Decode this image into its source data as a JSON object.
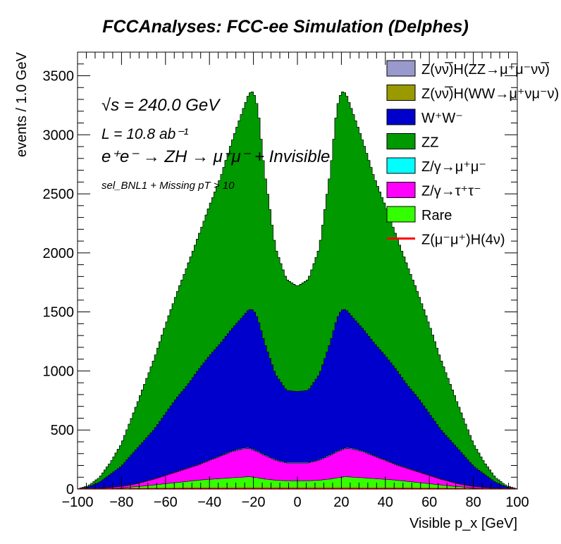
{
  "title": "FCCAnalyses: FCC-ee Simulation (Delphes)",
  "annotations": {
    "sqrt_s": "√s = 240.0 GeV",
    "lumi": "L = 10.8 ab⁻¹",
    "process": "e⁺e⁻ → ZH → μ⁺μ⁻ + Invisible",
    "selection": "sel_BNL1 + Missing pT > 10"
  },
  "chart_data": {
    "type": "area",
    "stacked": true,
    "title": "FCCAnalyses: FCC-ee Simulation (Delphes)",
    "xlabel": "Visible p_x [GeV]",
    "ylabel": "events / 1.0 GeV",
    "xlim": [
      -100,
      100
    ],
    "ylim": [
      0,
      3700
    ],
    "xticks": [
      "−100",
      "−80",
      "−60",
      "−40",
      "−20",
      "0",
      "20",
      "40",
      "60",
      "80",
      "100"
    ],
    "yticks": [
      "0",
      "500",
      "1000",
      "1500",
      "2000",
      "2500",
      "3000",
      "3500"
    ],
    "x": [
      -100,
      -95,
      -90,
      -85,
      -80,
      -75,
      -70,
      -65,
      -60,
      -55,
      -50,
      -45,
      -40,
      -35,
      -30,
      -25,
      -22,
      -20,
      -18,
      -15,
      -10,
      -5,
      0,
      5,
      10,
      15,
      18,
      20,
      22,
      25,
      30,
      35,
      40,
      45,
      50,
      55,
      60,
      65,
      70,
      75,
      80,
      85,
      90,
      95,
      100
    ],
    "series": [
      {
        "name": "Rare",
        "color": "#33ff00",
        "values": [
          0,
          1,
          3,
          6,
          10,
          18,
          25,
          35,
          45,
          55,
          65,
          75,
          82,
          88,
          95,
          100,
          105,
          100,
          95,
          85,
          75,
          70,
          70,
          70,
          75,
          85,
          95,
          100,
          105,
          100,
          95,
          88,
          82,
          75,
          65,
          55,
          45,
          35,
          25,
          18,
          10,
          6,
          3,
          1,
          0
        ]
      },
      {
        "name": "Z/γ→τ⁺τ⁻",
        "color": "#ff00ff",
        "values": [
          0,
          2,
          4,
          8,
          12,
          20,
          35,
          50,
          70,
          90,
          110,
          130,
          160,
          190,
          220,
          240,
          240,
          230,
          220,
          200,
          170,
          150,
          150,
          150,
          170,
          200,
          220,
          230,
          240,
          240,
          220,
          190,
          160,
          130,
          110,
          90,
          70,
          50,
          35,
          20,
          12,
          8,
          4,
          2,
          0
        ]
      },
      {
        "name": "Z/γ→μ⁺μ⁻",
        "color": "#00ffff",
        "values": [
          0,
          0,
          1,
          1,
          2,
          2,
          3,
          3,
          4,
          4,
          5,
          5,
          6,
          6,
          7,
          7,
          7,
          7,
          7,
          7,
          6,
          6,
          6,
          6,
          6,
          7,
          7,
          7,
          7,
          7,
          7,
          6,
          6,
          5,
          5,
          4,
          4,
          3,
          3,
          2,
          2,
          1,
          1,
          0,
          0
        ]
      },
      {
        "name": "W⁺W⁻",
        "color": "#0000cc",
        "values": [
          0,
          15,
          50,
          110,
          170,
          260,
          340,
          420,
          520,
          620,
          700,
          800,
          880,
          950,
          1030,
          1110,
          1170,
          1180,
          1120,
          950,
          720,
          610,
          600,
          610,
          720,
          950,
          1120,
          1180,
          1170,
          1110,
          1030,
          950,
          880,
          800,
          700,
          620,
          520,
          420,
          340,
          260,
          170,
          110,
          50,
          15,
          0
        ]
      },
      {
        "name": "ZZ",
        "color": "#009900",
        "values": [
          0,
          10,
          40,
          100,
          190,
          320,
          460,
          600,
          750,
          880,
          1010,
          1130,
          1270,
          1400,
          1580,
          1740,
          1830,
          1850,
          1790,
          1450,
          1070,
          940,
          890,
          940,
          1070,
          1450,
          1790,
          1850,
          1830,
          1740,
          1580,
          1400,
          1270,
          1130,
          1010,
          880,
          750,
          600,
          460,
          320,
          190,
          100,
          40,
          10,
          0
        ]
      },
      {
        "name": "Z(νν̅)H(WW→μ⁺νμ⁻ν)",
        "color": "#999900",
        "values": [
          0,
          0,
          0,
          0,
          0,
          0,
          0,
          0,
          0,
          0,
          0,
          0,
          0,
          0,
          0,
          0,
          0,
          0,
          0,
          0,
          0,
          0,
          0,
          0,
          0,
          0,
          0,
          0,
          0,
          0,
          0,
          0,
          0,
          0,
          0,
          0,
          0,
          0,
          0,
          0,
          0,
          0,
          0,
          0,
          0
        ]
      },
      {
        "name": "Z(νν̅)H(ZZ→μ⁺μ⁻νν̅)",
        "color": "#9999cc",
        "values": [
          0,
          0,
          0,
          0,
          0,
          0,
          0,
          0,
          0,
          0,
          0,
          0,
          0,
          0,
          0,
          0,
          0,
          0,
          0,
          0,
          0,
          0,
          0,
          0,
          0,
          0,
          0,
          0,
          0,
          0,
          0,
          0,
          0,
          0,
          0,
          0,
          0,
          0,
          0,
          0,
          0,
          0,
          0,
          0,
          0
        ]
      }
    ],
    "signal": {
      "name": "Z(μ⁻μ⁺)H(4ν)",
      "color": "#ff0000",
      "values": [
        0,
        1,
        1,
        2,
        2,
        3,
        3,
        4,
        4,
        4,
        5,
        5,
        5,
        5,
        5,
        6,
        6,
        6,
        6,
        6,
        6,
        6,
        6,
        6,
        6,
        6,
        6,
        6,
        6,
        6,
        5,
        5,
        5,
        5,
        5,
        4,
        4,
        4,
        3,
        3,
        2,
        2,
        1,
        1,
        0
      ]
    },
    "legend": {
      "placement": "top-right",
      "entries": [
        {
          "label": "Z(νν̅)H(ZZ→μ⁺μ⁻νν̅)",
          "color": "#9999cc",
          "kind": "box"
        },
        {
          "label": "Z(νν̅)H(WW→μ⁺νμ⁻ν)",
          "color": "#999900",
          "kind": "box"
        },
        {
          "label": "W⁺W⁻",
          "color": "#0000cc",
          "kind": "box"
        },
        {
          "label": "ZZ",
          "color": "#009900",
          "kind": "box"
        },
        {
          "label": "Z/γ→μ⁺μ⁻",
          "color": "#00ffff",
          "kind": "box"
        },
        {
          "label": "Z/γ→τ⁺τ⁻",
          "color": "#ff00ff",
          "kind": "box"
        },
        {
          "label": "Rare",
          "color": "#33ff00",
          "kind": "box"
        },
        {
          "label": "Z(μ⁻μ⁺)H(4ν)",
          "color": "#ff0000",
          "kind": "line"
        }
      ]
    }
  }
}
